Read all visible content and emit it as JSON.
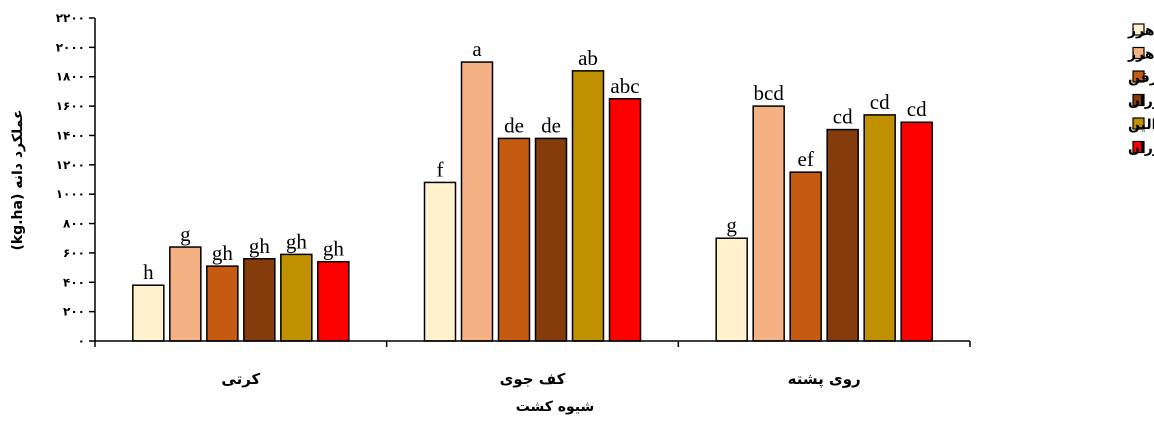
{
  "chart_data": {
    "type": "bar",
    "categories": [
      "کرتی",
      "کف جوی",
      "روی پشته"
    ],
    "xlabel": "شیوه کشت",
    "ylabel": "عملکرد دانه (kg.ha)",
    "ylim": [
      0,
      2200
    ],
    "yticks": [
      "۰",
      "۲۰۰",
      "۴۰۰",
      "۶۰۰",
      "۸۰۰",
      "۱۰۰۰",
      "۱۲۰۰",
      "۱۴۰۰",
      "۱۶۰۰",
      "۱۸۰۰",
      "۲۰۰۰",
      "۲۲۰۰"
    ],
    "ytick_values": [
      0,
      200,
      400,
      600,
      800,
      1000,
      1200,
      1400,
      1600,
      1800,
      2000,
      2200
    ],
    "grid": false,
    "legend_position": "right",
    "series": [
      {
        "name": "آلوده به علف‌های هرز",
        "color": "#FFF2CC",
        "values": [
          380,
          1080,
          700
        ],
        "labels": [
          "h",
          "f",
          "g"
        ]
      },
      {
        "name": "وجین علف‌های هرز",
        "color": "#F4B183",
        "values": [
          640,
          1900,
          1600
        ],
        "labels": [
          "g",
          "a",
          "bcd"
        ]
      },
      {
        "name": "اکسی‌فلورفن",
        "color": "#C55A11",
        "values": [
          510,
          1380,
          1150
        ],
        "labels": [
          "gh",
          "de",
          "ef"
        ]
      },
      {
        "name": "دایوران",
        "color": "#843C0C",
        "values": [
          560,
          1380,
          1440
        ],
        "labels": [
          "gh",
          "de",
          "cd"
        ]
      },
      {
        "name": "تریفلورالین",
        "color": "#BF9000",
        "values": [
          590,
          1840,
          1540
        ],
        "labels": [
          "gh",
          "ab",
          "cd"
        ]
      },
      {
        "name": "لینوران",
        "color": "#FF0000",
        "values": [
          540,
          1650,
          1490
        ],
        "labels": [
          "gh",
          "abc",
          "cd"
        ]
      }
    ]
  }
}
